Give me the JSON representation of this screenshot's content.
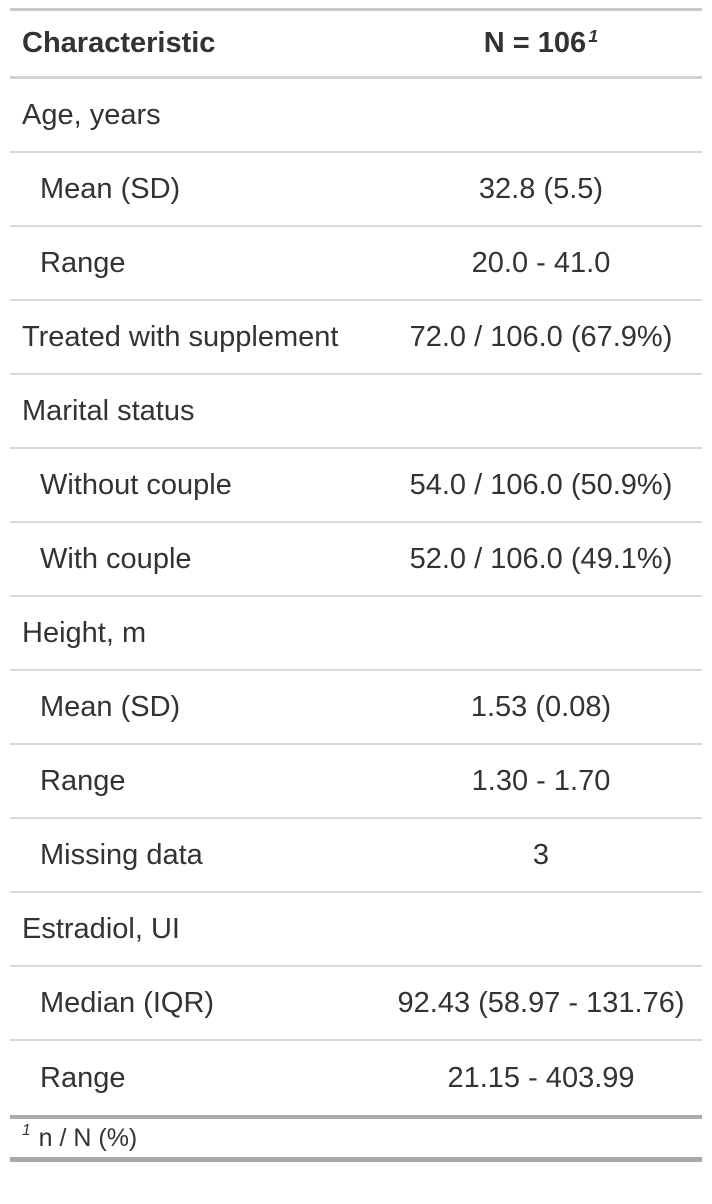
{
  "chart_data": {
    "type": "table",
    "title": "",
    "columns": [
      {
        "label": "Characteristic"
      },
      {
        "label": "N = 106",
        "footnote_mark": "1"
      }
    ],
    "rows": [
      {
        "label": "Age, years",
        "value": "",
        "indent": false
      },
      {
        "label": "Mean (SD)",
        "value": "32.8 (5.5)",
        "indent": true
      },
      {
        "label": "Range",
        "value": "20.0 - 41.0",
        "indent": true
      },
      {
        "label": "Treated with supplement",
        "value": "72.0 / 106.0 (67.9%)",
        "indent": false
      },
      {
        "label": "Marital status",
        "value": "",
        "indent": false
      },
      {
        "label": "Without couple",
        "value": "54.0 / 106.0 (50.9%)",
        "indent": true
      },
      {
        "label": "With couple",
        "value": "52.0 / 106.0 (49.1%)",
        "indent": true
      },
      {
        "label": "Height, m",
        "value": "",
        "indent": false
      },
      {
        "label": "Mean (SD)",
        "value": "1.53 (0.08)",
        "indent": true
      },
      {
        "label": "Range",
        "value": "1.30 - 1.70",
        "indent": true
      },
      {
        "label": "Missing data",
        "value": "3",
        "indent": true
      },
      {
        "label": "Estradiol, UI",
        "value": "",
        "indent": false
      },
      {
        "label": "Median (IQR)",
        "value": "92.43 (58.97 - 131.76)",
        "indent": true
      },
      {
        "label": "Range",
        "value": "21.15 - 403.99",
        "indent": true
      }
    ],
    "footnote": {
      "mark": "1",
      "text": "n / N (%)"
    },
    "layout_hints": {
      "value_column_align": "center",
      "grid": "horizontal-rules-only"
    }
  },
  "colors": {
    "text": "#333333",
    "background": "#FFFFFF",
    "border_top": "#C9C9C9",
    "border_header": "#D3D3D3",
    "border_row": "#D9D9D9",
    "border_body_bottom": "#ACACAC",
    "border_table_bottom": "#A8A8A8"
  }
}
